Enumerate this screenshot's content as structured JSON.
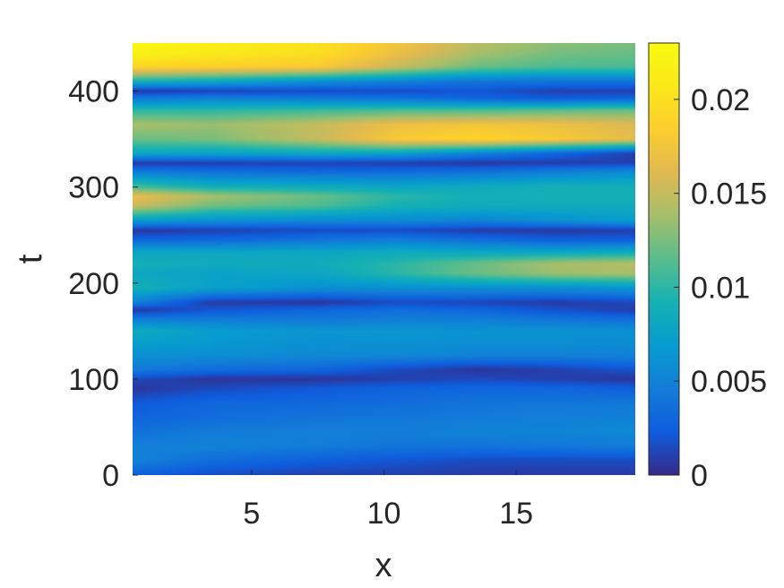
{
  "chart_data": {
    "type": "heatmap",
    "title": "",
    "xlabel": "x",
    "ylabel": "t",
    "xlim": [
      0.5,
      19.5
    ],
    "ylim": [
      0,
      450
    ],
    "x_ticks": [
      5,
      10,
      15
    ],
    "y_ticks": [
      0,
      100,
      200,
      300,
      400
    ],
    "x_tick_labels": [
      "5",
      "10",
      "15"
    ],
    "y_tick_labels": [
      "0",
      "100",
      "200",
      "300",
      "400"
    ],
    "colorbar": {
      "min": 0,
      "max": 0.023,
      "ticks": [
        0,
        0.005,
        0.01,
        0.015,
        0.02
      ],
      "tick_labels": [
        "0",
        "0.005",
        "0.01",
        "0.015",
        "0.02"
      ],
      "colormap": "parula"
    },
    "t_levels": [
      0,
      15,
      30,
      45,
      60,
      75,
      90,
      100,
      110,
      125,
      140,
      150,
      160,
      172,
      180,
      195,
      210,
      220,
      232,
      245,
      255,
      265,
      280,
      290,
      300,
      315,
      325,
      335,
      350,
      365,
      380,
      392,
      400,
      410,
      425,
      440,
      450
    ],
    "x_samples": [
      0.5,
      3.5,
      7.5,
      10.5,
      13.5,
      16.5,
      19.5
    ],
    "values": [
      [
        0.0025,
        0.0015,
        0.001,
        0.001,
        0.0008,
        0.0008,
        0.0008
      ],
      [
        0.005,
        0.0035,
        0.0025,
        0.002,
        0.0015,
        0.0015,
        0.0015
      ],
      [
        0.0048,
        0.005,
        0.0045,
        0.004,
        0.004,
        0.0042,
        0.0045
      ],
      [
        0.0038,
        0.0045,
        0.0048,
        0.0048,
        0.005,
        0.0052,
        0.0055
      ],
      [
        0.0028,
        0.0035,
        0.004,
        0.0042,
        0.0045,
        0.0048,
        0.005
      ],
      [
        0.0022,
        0.003,
        0.0032,
        0.0035,
        0.004,
        0.0042,
        0.0042
      ],
      [
        0.0005,
        0.0015,
        0.0022,
        0.0028,
        0.003,
        0.003,
        0.0025
      ],
      [
        0.0015,
        0.0005,
        0.0005,
        0.001,
        0.0015,
        0.001,
        0.0005
      ],
      [
        0.0045,
        0.0035,
        0.003,
        0.0015,
        0.0005,
        0.001,
        0.002
      ],
      [
        0.006,
        0.006,
        0.0055,
        0.0055,
        0.005,
        0.005,
        0.005
      ],
      [
        0.0075,
        0.0068,
        0.006,
        0.0062,
        0.006,
        0.006,
        0.0058
      ],
      [
        0.0085,
        0.007,
        0.0065,
        0.0065,
        0.0062,
        0.0062,
        0.006
      ],
      [
        0.0055,
        0.005,
        0.0045,
        0.005,
        0.005,
        0.0045,
        0.004
      ],
      [
        0.0005,
        0.002,
        0.003,
        0.0035,
        0.003,
        0.0018,
        0.0008
      ],
      [
        0.005,
        0.0008,
        0.0005,
        0.0015,
        0.0012,
        0.0008,
        0.0015
      ],
      [
        0.009,
        0.0075,
        0.006,
        0.006,
        0.006,
        0.006,
        0.0065
      ],
      [
        0.008,
        0.0075,
        0.008,
        0.01,
        0.012,
        0.0135,
        0.014
      ],
      [
        0.009,
        0.0085,
        0.0085,
        0.01,
        0.012,
        0.014,
        0.0145
      ],
      [
        0.008,
        0.008,
        0.008,
        0.0085,
        0.008,
        0.008,
        0.0085
      ],
      [
        0.003,
        0.003,
        0.004,
        0.0045,
        0.0035,
        0.0025,
        0.0025
      ],
      [
        0.0005,
        0.001,
        0.0015,
        0.0015,
        0.0008,
        0.0006,
        0.001
      ],
      [
        0.007,
        0.006,
        0.0055,
        0.0055,
        0.005,
        0.006,
        0.007
      ],
      [
        0.015,
        0.012,
        0.011,
        0.009,
        0.0085,
        0.0085,
        0.0085
      ],
      [
        0.017,
        0.014,
        0.012,
        0.01,
        0.009,
        0.009,
        0.009
      ],
      [
        0.011,
        0.009,
        0.0085,
        0.008,
        0.0085,
        0.009,
        0.009
      ],
      [
        0.005,
        0.004,
        0.0035,
        0.0035,
        0.004,
        0.005,
        0.006
      ],
      [
        0.0005,
        0.0008,
        0.001,
        0.0008,
        0.0005,
        0.0008,
        0.001
      ],
      [
        0.008,
        0.0075,
        0.008,
        0.0075,
        0.005,
        0.003,
        0.001
      ],
      [
        0.012,
        0.0125,
        0.015,
        0.018,
        0.019,
        0.018,
        0.0165
      ],
      [
        0.014,
        0.0135,
        0.015,
        0.017,
        0.0175,
        0.017,
        0.016
      ],
      [
        0.01,
        0.01,
        0.0105,
        0.011,
        0.011,
        0.0115,
        0.012
      ],
      [
        0.0045,
        0.005,
        0.0045,
        0.004,
        0.003,
        0.0025,
        0.003
      ],
      [
        0.0005,
        0.001,
        0.0015,
        0.0015,
        0.002,
        0.001,
        0.001
      ],
      [
        0.009,
        0.008,
        0.006,
        0.005,
        0.004,
        0.004,
        0.004
      ],
      [
        0.019,
        0.0185,
        0.018,
        0.015,
        0.012,
        0.011,
        0.011
      ],
      [
        0.022,
        0.021,
        0.02,
        0.017,
        0.014,
        0.0125,
        0.012
      ],
      [
        0.0225,
        0.0215,
        0.02,
        0.0175,
        0.0145,
        0.013,
        0.0125
      ]
    ]
  }
}
